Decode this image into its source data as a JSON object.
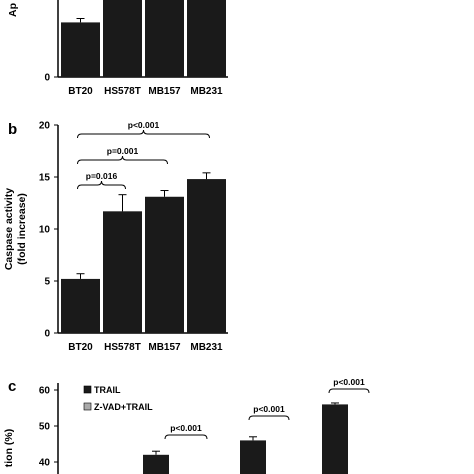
{
  "chart_data": [
    {
      "type": "bar",
      "panel_label": "",
      "ylabel": "Ap",
      "categories": [
        "BT20",
        "HS578T",
        "MB157",
        "MB231"
      ],
      "values": [
        14,
        30,
        30,
        30
      ],
      "errors": [
        1,
        0,
        0,
        0
      ],
      "yticks": [
        0
      ],
      "ylim": [
        0,
        30
      ],
      "legend": []
    },
    {
      "type": "bar",
      "panel_label": "b",
      "ylabel": "Caspase activity",
      "ylabel2": "(fold increase)",
      "categories": [
        "BT20",
        "HS578T",
        "MB157",
        "MB231"
      ],
      "values": [
        5.2,
        11.7,
        13.1,
        14.8
      ],
      "errors": [
        0.5,
        1.6,
        0.6,
        0.6
      ],
      "ylim": [
        0,
        20
      ],
      "yticks": [
        0,
        5,
        10,
        15,
        20
      ],
      "comparisons": [
        {
          "from": 0,
          "to": 1,
          "label": "p=0.016"
        },
        {
          "from": 0,
          "to": 2,
          "label": "p=0.001"
        },
        {
          "from": 0,
          "to": 3,
          "label": "p<0.001"
        }
      ]
    },
    {
      "type": "bar",
      "panel_label": "c",
      "ylabel": "tion (%)",
      "legend": [
        {
          "name": "TRAIL",
          "color": "#1a1a1a"
        },
        {
          "name": "Z-VAD+TRAIL",
          "color": "#aaaaaa"
        }
      ],
      "ylim": [
        40,
        60
      ],
      "yticks": [
        40,
        50,
        60
      ],
      "bars": [
        {
          "value": 42,
          "error": 1.0
        },
        {
          "value": 46,
          "error": 1.0
        },
        {
          "value": 56,
          "error": 0.4
        }
      ],
      "comparisons": [
        {
          "label": "p<0.001"
        },
        {
          "label": "p<0.001"
        },
        {
          "label": "p<0.001"
        }
      ]
    }
  ]
}
